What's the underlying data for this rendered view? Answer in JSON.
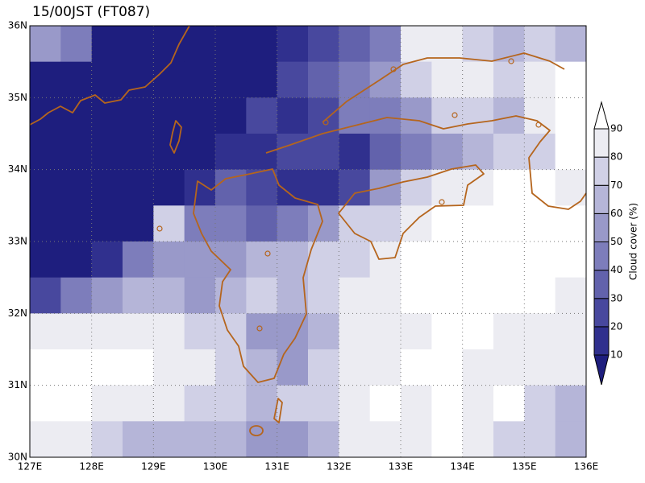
{
  "title": "15/00JST (FT087)",
  "lat_labels": [
    "36N",
    "35N",
    "34N",
    "33N",
    "32N",
    "31N",
    "30N"
  ],
  "lon_labels": [
    "127E",
    "128E",
    "129E",
    "130E",
    "131E",
    "132E",
    "133E",
    "134E",
    "135E",
    "136E"
  ],
  "colorbar": {
    "label": "Cloud cover (%)",
    "levels": [
      10,
      20,
      30,
      40,
      50,
      60,
      70,
      80,
      90
    ],
    "colors": [
      "#1e1e7e",
      "#30308e",
      "#48489e",
      "#6262ac",
      "#7d7dbb",
      "#9999c9",
      "#b5b5d8",
      "#d0d0e6",
      "#ececf2",
      "#ffffff"
    ]
  },
  "cloud_cover": [
    [
      55,
      45,
      5,
      5,
      5,
      5,
      5,
      5,
      15,
      25,
      30,
      45,
      80,
      85,
      70,
      65,
      75,
      65
    ],
    [
      5,
      5,
      5,
      5,
      5,
      5,
      5,
      5,
      25,
      30,
      40,
      55,
      75,
      85,
      80,
      75,
      85,
      90
    ],
    [
      5,
      5,
      5,
      5,
      5,
      5,
      5,
      25,
      15,
      20,
      45,
      40,
      55,
      70,
      75,
      65,
      80,
      90
    ],
    [
      5,
      5,
      5,
      5,
      5,
      5,
      15,
      15,
      25,
      20,
      15,
      35,
      45,
      55,
      60,
      70,
      75,
      90
    ],
    [
      5,
      5,
      5,
      5,
      5,
      15,
      35,
      25,
      15,
      10,
      25,
      55,
      75,
      80,
      85,
      90,
      90,
      85
    ],
    [
      5,
      5,
      5,
      5,
      70,
      40,
      40,
      35,
      40,
      55,
      70,
      75,
      85,
      90,
      90,
      95,
      95,
      90
    ],
    [
      5,
      5,
      15,
      45,
      55,
      50,
      55,
      60,
      65,
      70,
      75,
      85,
      90,
      95,
      95,
      95,
      95,
      90
    ],
    [
      25,
      40,
      55,
      60,
      60,
      55,
      60,
      70,
      65,
      70,
      80,
      85,
      90,
      95,
      95,
      90,
      90,
      85
    ],
    [
      85,
      80,
      80,
      85,
      80,
      75,
      70,
      50,
      55,
      65,
      80,
      85,
      85,
      90,
      90,
      85,
      85,
      80
    ],
    [
      90,
      90,
      95,
      90,
      85,
      80,
      75,
      60,
      55,
      70,
      85,
      85,
      90,
      90,
      85,
      80,
      85,
      80
    ],
    [
      90,
      90,
      85,
      85,
      80,
      70,
      70,
      65,
      70,
      75,
      85,
      90,
      85,
      90,
      85,
      90,
      75,
      65
    ],
    [
      85,
      80,
      75,
      65,
      60,
      60,
      65,
      55,
      55,
      65,
      80,
      85,
      85,
      90,
      80,
      75,
      70,
      60
    ]
  ]
}
